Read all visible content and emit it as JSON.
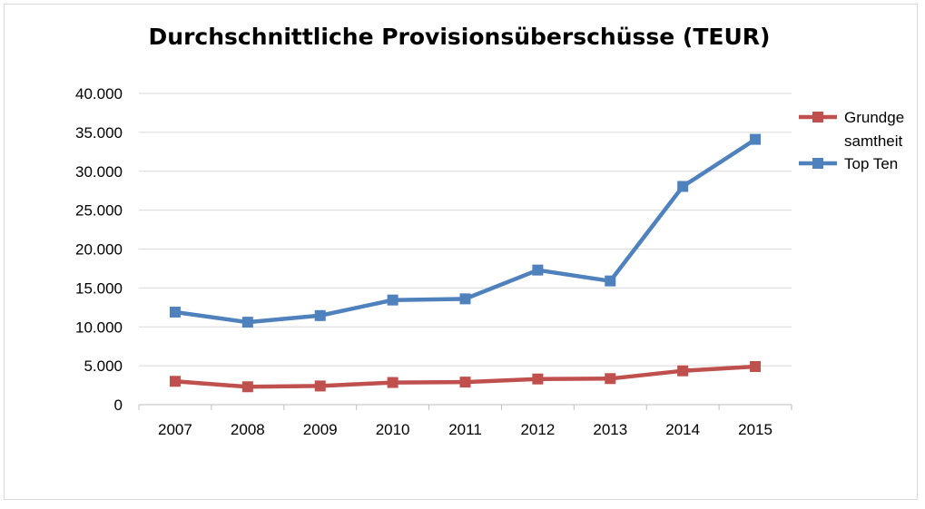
{
  "chart_data": {
    "type": "line",
    "title": "Durchschnittliche Provisionsüberschüsse (TEUR)",
    "categories": [
      "2007",
      "2008",
      "2009",
      "2010",
      "2011",
      "2012",
      "2013",
      "2014",
      "2015"
    ],
    "y_tick_labels": [
      "0",
      "5.000",
      "10.000",
      "15.000",
      "20.000",
      "25.000",
      "30.000",
      "35.000",
      "40.000"
    ],
    "ylim": [
      0,
      40000
    ],
    "grid": true,
    "legend_position": "right",
    "series": [
      {
        "name_lines": [
          "Grundge",
          "samtheit"
        ],
        "values": [
          3000,
          2300,
          2400,
          2850,
          2900,
          3300,
          3350,
          4350,
          4900
        ],
        "color": "#c0504d"
      },
      {
        "name_lines": [
          "Top Ten"
        ],
        "values": [
          11900,
          10600,
          11450,
          13450,
          13600,
          17300,
          15900,
          28050,
          34100
        ],
        "color": "#4f81bd"
      }
    ]
  }
}
